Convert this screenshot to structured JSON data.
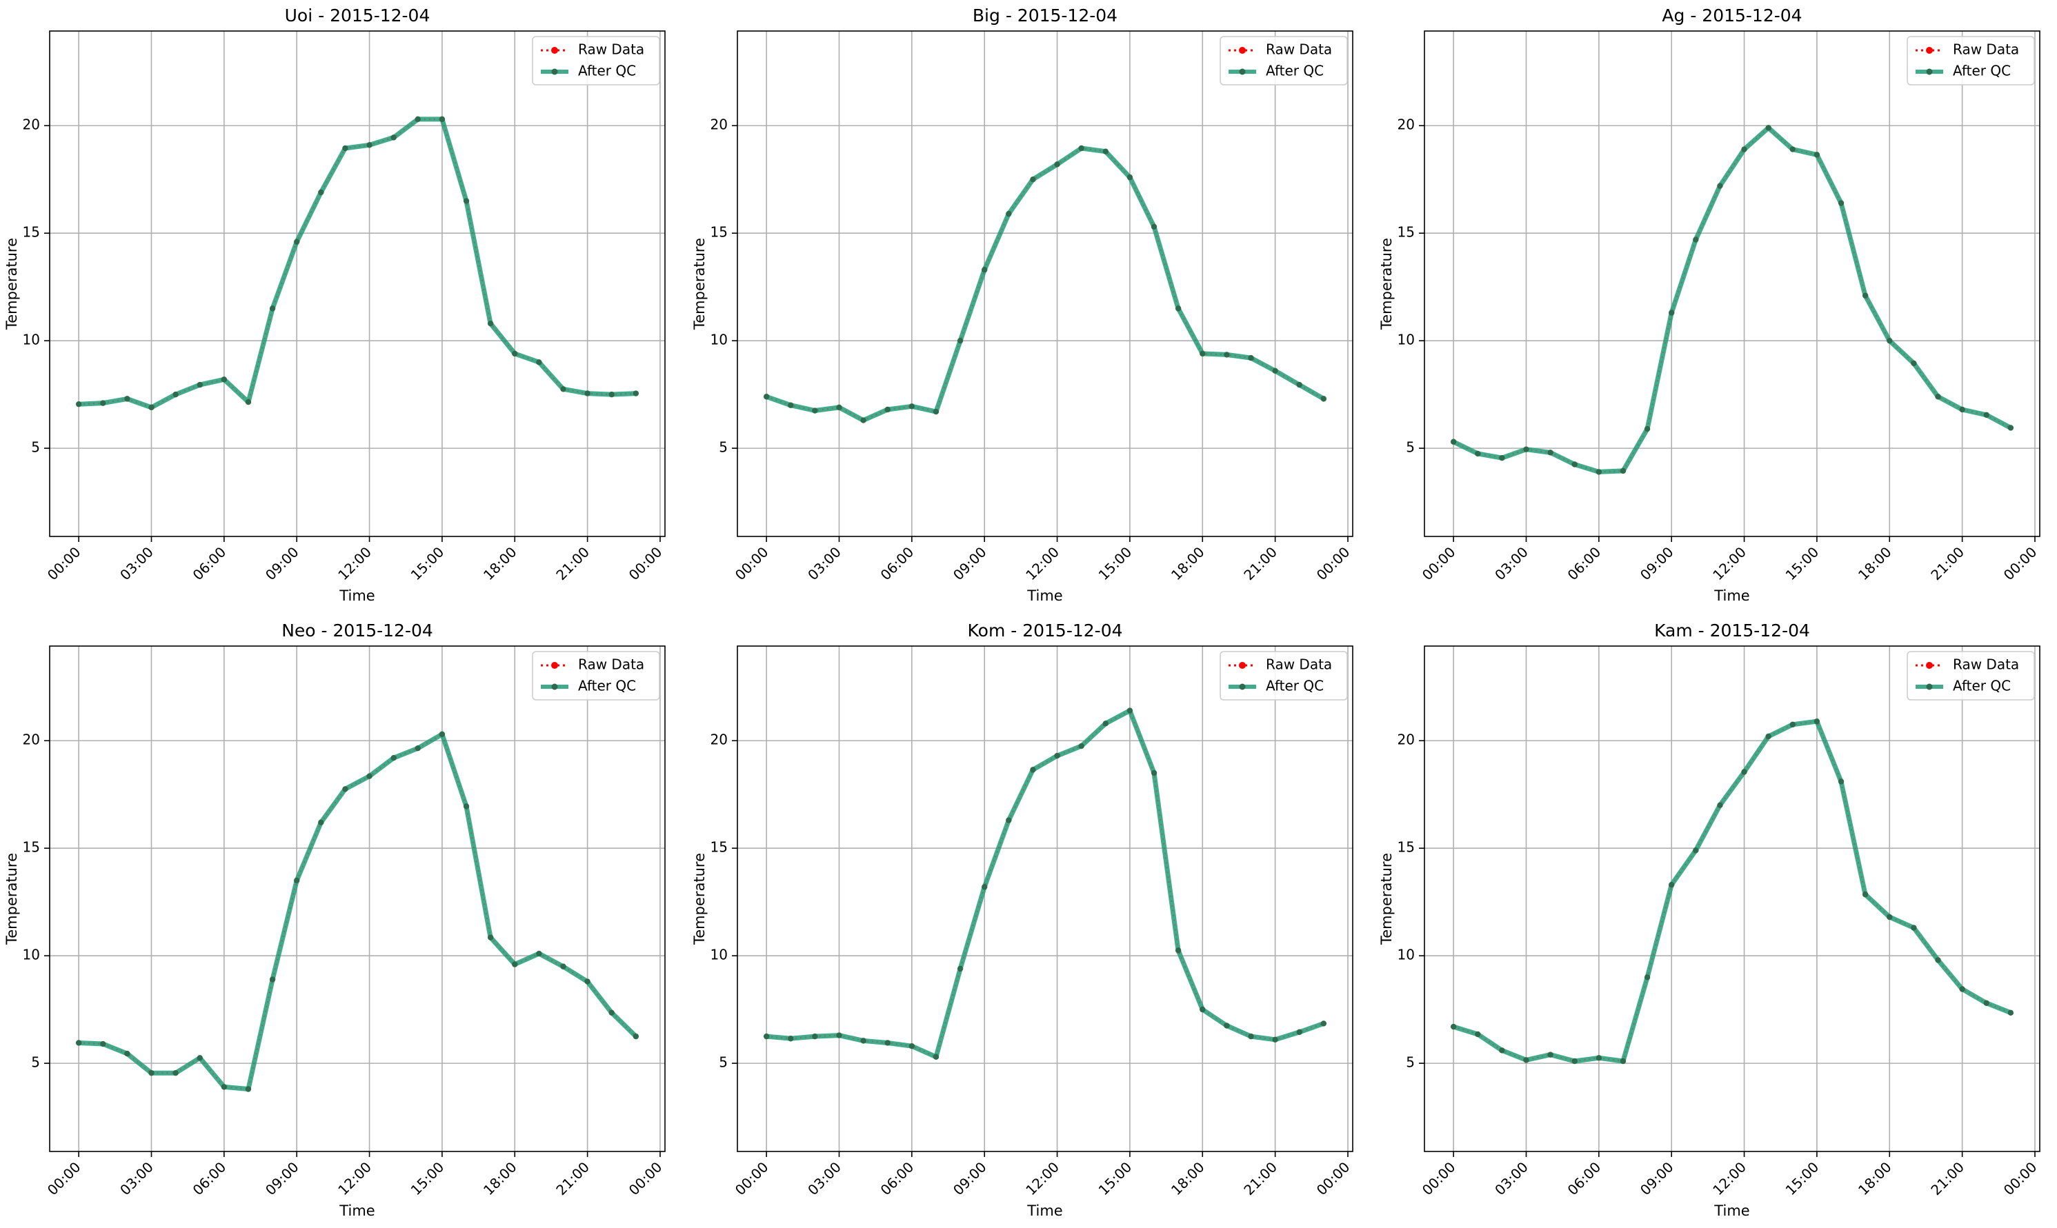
{
  "legend": {
    "raw_label": "Raw Data",
    "qc_label": "After QC"
  },
  "colors": {
    "raw": "#ff0000",
    "qc_line": "#1f9e78",
    "qc_marker": "#2e6b4e",
    "grid": "#b0b0b0",
    "frame": "#000000"
  },
  "chart_data": [
    {
      "type": "line",
      "title": "Uoi - 2015-12-04",
      "xlabel": "Time",
      "ylabel": "Temperature",
      "x_hours": [
        0,
        1,
        2,
        3,
        4,
        5,
        6,
        7,
        8,
        9,
        10,
        11,
        12,
        13,
        14,
        15,
        16,
        17,
        18,
        19,
        20,
        21,
        22,
        23
      ],
      "x_tick_labels": [
        "00:00",
        "03:00",
        "06:00",
        "09:00",
        "12:00",
        "15:00",
        "18:00",
        "21:00",
        "00:00"
      ],
      "xlim_hours": [
        -1.2,
        24.2
      ],
      "ylim": [
        0.9,
        24.4
      ],
      "y_ticks": [
        5,
        10,
        15,
        20
      ],
      "grid": true,
      "legend_position": "top-right",
      "series": [
        {
          "name": "Raw Data",
          "values": [
            7.05,
            7.1,
            7.3,
            6.9,
            7.5,
            7.95,
            8.2,
            7.15,
            11.5,
            14.6,
            16.9,
            18.95,
            19.1,
            19.45,
            20.3,
            20.3,
            16.5,
            10.8,
            9.4,
            9.0,
            7.75,
            7.55,
            7.5,
            7.55
          ]
        },
        {
          "name": "After QC",
          "values": [
            7.05,
            7.1,
            7.3,
            6.9,
            7.5,
            7.95,
            8.2,
            7.15,
            11.5,
            14.6,
            16.9,
            18.95,
            19.1,
            19.45,
            20.3,
            20.3,
            16.5,
            10.8,
            9.4,
            9.0,
            7.75,
            7.55,
            7.5,
            7.55
          ]
        }
      ]
    },
    {
      "type": "line",
      "title": "Big - 2015-12-04",
      "xlabel": "Time",
      "ylabel": "Temperature",
      "x_hours": [
        0,
        1,
        2,
        3,
        4,
        5,
        6,
        7,
        8,
        9,
        10,
        11,
        12,
        13,
        14,
        15,
        16,
        17,
        18,
        19,
        20,
        21,
        22,
        23
      ],
      "x_tick_labels": [
        "00:00",
        "03:00",
        "06:00",
        "09:00",
        "12:00",
        "15:00",
        "18:00",
        "21:00",
        "00:00"
      ],
      "xlim_hours": [
        -1.2,
        24.2
      ],
      "ylim": [
        0.9,
        24.4
      ],
      "y_ticks": [
        5,
        10,
        15,
        20
      ],
      "grid": true,
      "legend_position": "top-right",
      "series": [
        {
          "name": "Raw Data",
          "values": [
            7.4,
            7.0,
            6.75,
            6.9,
            6.3,
            6.8,
            6.95,
            6.7,
            10.0,
            13.3,
            15.9,
            17.5,
            18.2,
            18.95,
            18.8,
            17.6,
            15.3,
            11.5,
            9.4,
            9.35,
            9.2,
            8.6,
            7.95,
            7.3
          ]
        },
        {
          "name": "After QC",
          "values": [
            7.4,
            7.0,
            6.75,
            6.9,
            6.3,
            6.8,
            6.95,
            6.7,
            10.0,
            13.3,
            15.9,
            17.5,
            18.2,
            18.95,
            18.8,
            17.6,
            15.3,
            11.5,
            9.4,
            9.35,
            9.2,
            8.6,
            7.95,
            7.3
          ]
        }
      ]
    },
    {
      "type": "line",
      "title": "Ag - 2015-12-04",
      "xlabel": "Time",
      "ylabel": "Temperature",
      "x_hours": [
        0,
        1,
        2,
        3,
        4,
        5,
        6,
        7,
        8,
        9,
        10,
        11,
        12,
        13,
        14,
        15,
        16,
        17,
        18,
        19,
        20,
        21,
        22,
        23
      ],
      "x_tick_labels": [
        "00:00",
        "03:00",
        "06:00",
        "09:00",
        "12:00",
        "15:00",
        "18:00",
        "21:00",
        "00:00"
      ],
      "xlim_hours": [
        -1.2,
        24.2
      ],
      "ylim": [
        0.9,
        24.4
      ],
      "y_ticks": [
        5,
        10,
        15,
        20
      ],
      "grid": true,
      "legend_position": "top-right",
      "series": [
        {
          "name": "Raw Data",
          "values": [
            5.3,
            4.75,
            4.55,
            4.95,
            4.8,
            4.25,
            3.9,
            3.95,
            5.9,
            11.3,
            14.7,
            17.2,
            18.9,
            19.9,
            18.9,
            18.65,
            16.4,
            12.1,
            10.0,
            8.95,
            7.4,
            6.8,
            6.55,
            5.95
          ]
        },
        {
          "name": "After QC",
          "values": [
            5.3,
            4.75,
            4.55,
            4.95,
            4.8,
            4.25,
            3.9,
            3.95,
            5.9,
            11.3,
            14.7,
            17.2,
            18.9,
            19.9,
            18.9,
            18.65,
            16.4,
            12.1,
            10.0,
            8.95,
            7.4,
            6.8,
            6.55,
            5.95
          ]
        }
      ]
    },
    {
      "type": "line",
      "title": "Neo - 2015-12-04",
      "xlabel": "Time",
      "ylabel": "Temperature",
      "x_hours": [
        0,
        1,
        2,
        3,
        4,
        5,
        6,
        7,
        8,
        9,
        10,
        11,
        12,
        13,
        14,
        15,
        16,
        17,
        18,
        19,
        20,
        21,
        22,
        23
      ],
      "x_tick_labels": [
        "00:00",
        "03:00",
        "06:00",
        "09:00",
        "12:00",
        "15:00",
        "18:00",
        "21:00",
        "00:00"
      ],
      "xlim_hours": [
        -1.2,
        24.2
      ],
      "ylim": [
        0.9,
        24.4
      ],
      "y_ticks": [
        5,
        10,
        15,
        20
      ],
      "grid": true,
      "legend_position": "top-right",
      "series": [
        {
          "name": "Raw Data",
          "values": [
            5.95,
            5.9,
            5.45,
            4.55,
            4.55,
            5.25,
            3.9,
            3.8,
            8.9,
            13.5,
            16.2,
            17.75,
            18.35,
            19.2,
            19.65,
            20.3,
            16.95,
            10.85,
            9.6,
            10.1,
            9.5,
            8.8,
            7.35,
            6.25
          ]
        },
        {
          "name": "After QC",
          "values": [
            5.95,
            5.9,
            5.45,
            4.55,
            4.55,
            5.25,
            3.9,
            3.8,
            8.9,
            13.5,
            16.2,
            17.75,
            18.35,
            19.2,
            19.65,
            20.3,
            16.95,
            10.85,
            9.6,
            10.1,
            9.5,
            8.8,
            7.35,
            6.25
          ]
        }
      ]
    },
    {
      "type": "line",
      "title": "Kom - 2015-12-04",
      "xlabel": "Time",
      "ylabel": "Temperature",
      "x_hours": [
        0,
        1,
        2,
        3,
        4,
        5,
        6,
        7,
        8,
        9,
        10,
        11,
        12,
        13,
        14,
        15,
        16,
        17,
        18,
        19,
        20,
        21,
        22,
        23
      ],
      "x_tick_labels": [
        "00:00",
        "03:00",
        "06:00",
        "09:00",
        "12:00",
        "15:00",
        "18:00",
        "21:00",
        "00:00"
      ],
      "xlim_hours": [
        -1.2,
        24.2
      ],
      "ylim": [
        0.9,
        24.4
      ],
      "y_ticks": [
        5,
        10,
        15,
        20
      ],
      "grid": true,
      "legend_position": "top-right",
      "series": [
        {
          "name": "Raw Data",
          "values": [
            6.25,
            6.15,
            6.25,
            6.3,
            6.05,
            5.95,
            5.8,
            5.3,
            9.4,
            13.2,
            16.3,
            18.65,
            19.3,
            19.75,
            20.8,
            21.4,
            18.5,
            10.25,
            7.5,
            6.75,
            6.25,
            6.1,
            6.45,
            6.85
          ]
        },
        {
          "name": "After QC",
          "values": [
            6.25,
            6.15,
            6.25,
            6.3,
            6.05,
            5.95,
            5.8,
            5.3,
            9.4,
            13.2,
            16.3,
            18.65,
            19.3,
            19.75,
            20.8,
            21.4,
            18.5,
            10.25,
            7.5,
            6.75,
            6.25,
            6.1,
            6.45,
            6.85
          ]
        }
      ]
    },
    {
      "type": "line",
      "title": "Kam - 2015-12-04",
      "xlabel": "Time",
      "ylabel": "Temperature",
      "x_hours": [
        0,
        1,
        2,
        3,
        4,
        5,
        6,
        7,
        8,
        9,
        10,
        11,
        12,
        13,
        14,
        15,
        16,
        17,
        18,
        19,
        20,
        21,
        22,
        23
      ],
      "x_tick_labels": [
        "00:00",
        "03:00",
        "06:00",
        "09:00",
        "12:00",
        "15:00",
        "18:00",
        "21:00",
        "00:00"
      ],
      "xlim_hours": [
        -1.2,
        24.2
      ],
      "ylim": [
        0.9,
        24.4
      ],
      "y_ticks": [
        5,
        10,
        15,
        20
      ],
      "grid": true,
      "legend_position": "top-right",
      "series": [
        {
          "name": "Raw Data",
          "values": [
            6.7,
            6.35,
            5.6,
            5.15,
            5.4,
            5.1,
            5.25,
            5.1,
            9.0,
            13.3,
            14.9,
            17.0,
            18.55,
            20.2,
            20.75,
            20.9,
            18.1,
            12.85,
            11.8,
            11.3,
            9.8,
            8.45,
            7.8,
            7.35
          ]
        },
        {
          "name": "After QC",
          "values": [
            6.7,
            6.35,
            5.6,
            5.15,
            5.4,
            5.1,
            5.25,
            5.1,
            9.0,
            13.3,
            14.9,
            17.0,
            18.55,
            20.2,
            20.75,
            20.9,
            18.1,
            12.85,
            11.8,
            11.3,
            9.8,
            8.45,
            7.8,
            7.35
          ]
        }
      ]
    }
  ]
}
